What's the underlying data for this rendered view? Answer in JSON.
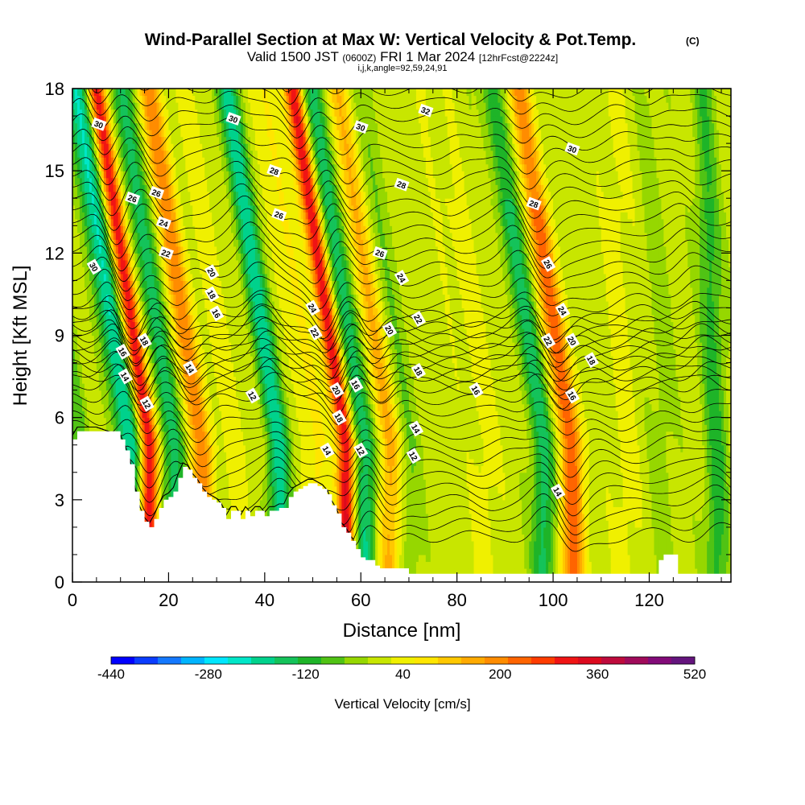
{
  "title": {
    "main": "Wind-Parallel Section at Max W: Vertical Velocity & Pot.Temp.",
    "main_suffix": "(C)",
    "line2_a": "Valid 1500 JST",
    "line2_b": "(0600Z)",
    "line2_c": "FRI 1 Mar 2024",
    "line2_d": "[12hrFcst@2224z]",
    "line3": "i,j,k,angle=92,59,24,91"
  },
  "chart_data": {
    "type": "heatmap",
    "title": "Wind-Parallel Section at Max W: Vertical Velocity & Pot.Temp.",
    "xlabel": "Distance [nm]",
    "ylabel": "Height [Kft MSL]",
    "xlim": [
      0,
      137
    ],
    "ylim": [
      0,
      18
    ],
    "x_ticks": [
      0,
      20,
      40,
      60,
      80,
      100,
      120
    ],
    "y_ticks": [
      0,
      3,
      6,
      9,
      12,
      15,
      18
    ],
    "x_tick_labels": [
      "0",
      "20",
      "40",
      "60",
      "80",
      "100",
      "120"
    ],
    "y_tick_labels": [
      "0",
      "3",
      "6",
      "9",
      "12",
      "15",
      "18"
    ],
    "grid": false,
    "colorbar": {
      "label": "Vertical Velocity [cm/s]",
      "min": -440,
      "max": 520,
      "step": 40,
      "tick_labels": [
        "-440",
        "-280",
        "-120",
        "40",
        "200",
        "360",
        "520"
      ],
      "colors": [
        "#0000ff",
        "#0a3cff",
        "#1478ff",
        "#00b4ff",
        "#00e6ff",
        "#00e6c8",
        "#00d28c",
        "#14c35a",
        "#1eb428",
        "#50c314",
        "#96d700",
        "#c8e600",
        "#f0f000",
        "#ffe600",
        "#ffc800",
        "#ffaa00",
        "#ff8c00",
        "#ff6400",
        "#ff3c00",
        "#f01414",
        "#dc0a1e",
        "#be0a3c",
        "#a00a5a",
        "#820a78",
        "#64147d"
      ]
    },
    "velocity_bands_cm_s": [
      {
        "x_center": 2,
        "peak": -80
      },
      {
        "x_center": 12,
        "peak": -240
      },
      {
        "x_center": 16,
        "peak": 360
      },
      {
        "x_center": 21,
        "peak": -160
      },
      {
        "x_center": 27,
        "peak": 200
      },
      {
        "x_center": 35,
        "peak": 40
      },
      {
        "x_center": 43,
        "peak": -200
      },
      {
        "x_center": 51,
        "peak": 80
      },
      {
        "x_center": 57,
        "peak": 360
      },
      {
        "x_center": 61,
        "peak": -180
      },
      {
        "x_center": 66,
        "peak": 160
      },
      {
        "x_center": 70,
        "peak": -60
      },
      {
        "x_center": 86,
        "peak": 40
      },
      {
        "x_center": 98,
        "peak": -160
      },
      {
        "x_center": 104,
        "peak": 240
      },
      {
        "x_center": 115,
        "peak": 40
      },
      {
        "x_center": 123,
        "peak": -40
      },
      {
        "x_center": 134,
        "peak": -120
      }
    ],
    "terrain_kft": [
      [
        0,
        5.2
      ],
      [
        1,
        5.5
      ],
      [
        5,
        5.5
      ],
      [
        10,
        5.2
      ],
      [
        11,
        4.8
      ],
      [
        12,
        4.3
      ],
      [
        13,
        3.3
      ],
      [
        14,
        2.6
      ],
      [
        15,
        2.2
      ],
      [
        16,
        2.0
      ],
      [
        17,
        2.3
      ],
      [
        18,
        2.7
      ],
      [
        19,
        3.0
      ],
      [
        20,
        3.1
      ],
      [
        21,
        3.3
      ],
      [
        22,
        3.8
      ],
      [
        23,
        4.2
      ],
      [
        24,
        4.1
      ],
      [
        25,
        3.8
      ],
      [
        26,
        3.6
      ],
      [
        27,
        3.3
      ],
      [
        28,
        3.1
      ],
      [
        29,
        3.0
      ],
      [
        30,
        2.9
      ],
      [
        31,
        2.7
      ],
      [
        32,
        2.3
      ],
      [
        33,
        2.6
      ],
      [
        34,
        2.6
      ],
      [
        35,
        2.3
      ],
      [
        36,
        2.6
      ],
      [
        37,
        2.4
      ],
      [
        38,
        2.6
      ],
      [
        39,
        2.6
      ],
      [
        40,
        2.4
      ],
      [
        41,
        2.6
      ],
      [
        42,
        2.6
      ],
      [
        43,
        2.7
      ],
      [
        44,
        2.7
      ],
      [
        45,
        3.1
      ],
      [
        46,
        3.3
      ],
      [
        47,
        3.4
      ],
      [
        48,
        3.5
      ],
      [
        49,
        3.6
      ],
      [
        50,
        3.6
      ],
      [
        51,
        3.5
      ],
      [
        52,
        3.4
      ],
      [
        53,
        3.2
      ],
      [
        54,
        2.8
      ],
      [
        55,
        2.5
      ],
      [
        56,
        2.0
      ],
      [
        57,
        1.8
      ],
      [
        58,
        1.5
      ],
      [
        59,
        1.2
      ],
      [
        60,
        0.9
      ],
      [
        61,
        0.8
      ],
      [
        62,
        0.8
      ],
      [
        63,
        0.6
      ],
      [
        64,
        0.5
      ],
      [
        70,
        0.3
      ],
      [
        100,
        0.3
      ],
      [
        121,
        0.3
      ],
      [
        122,
        0.8
      ],
      [
        123,
        1.0
      ],
      [
        125,
        1.0
      ],
      [
        126,
        0.3
      ],
      [
        137,
        0.3
      ]
    ],
    "theta_levels_C": [
      12,
      14,
      16,
      18,
      20,
      22,
      24,
      26,
      28,
      30,
      32
    ],
    "contour_labels": [
      {
        "x": 5.5,
        "y": 16.7,
        "text": "30"
      },
      {
        "x": 33.5,
        "y": 16.9,
        "text": "30"
      },
      {
        "x": 60,
        "y": 16.6,
        "text": "30"
      },
      {
        "x": 73.5,
        "y": 17.2,
        "text": "32"
      },
      {
        "x": 104,
        "y": 15.8,
        "text": "30"
      },
      {
        "x": 4.5,
        "y": 11.5,
        "text": "30"
      },
      {
        "x": 42,
        "y": 15.0,
        "text": "28"
      },
      {
        "x": 68.5,
        "y": 14.5,
        "text": "28"
      },
      {
        "x": 96,
        "y": 13.8,
        "text": "28"
      },
      {
        "x": 12.5,
        "y": 14.0,
        "text": "26"
      },
      {
        "x": 17.5,
        "y": 14.2,
        "text": "26"
      },
      {
        "x": 43,
        "y": 13.4,
        "text": "26"
      },
      {
        "x": 64,
        "y": 12.0,
        "text": "26"
      },
      {
        "x": 99,
        "y": 11.6,
        "text": "26"
      },
      {
        "x": 19,
        "y": 13.1,
        "text": "24"
      },
      {
        "x": 50,
        "y": 10.0,
        "text": "24"
      },
      {
        "x": 68.5,
        "y": 11.1,
        "text": "24"
      },
      {
        "x": 102,
        "y": 9.9,
        "text": "24"
      },
      {
        "x": 19.5,
        "y": 12.0,
        "text": "22"
      },
      {
        "x": 50.5,
        "y": 9.1,
        "text": "22"
      },
      {
        "x": 72,
        "y": 9.6,
        "text": "22"
      },
      {
        "x": 99,
        "y": 8.8,
        "text": "22"
      },
      {
        "x": 29,
        "y": 11.3,
        "text": "20"
      },
      {
        "x": 66,
        "y": 9.2,
        "text": "20"
      },
      {
        "x": 55,
        "y": 7.0,
        "text": "20"
      },
      {
        "x": 104,
        "y": 8.8,
        "text": "20"
      },
      {
        "x": 29,
        "y": 10.5,
        "text": "18"
      },
      {
        "x": 15,
        "y": 8.8,
        "text": "18"
      },
      {
        "x": 72,
        "y": 7.7,
        "text": "18"
      },
      {
        "x": 55.5,
        "y": 6.0,
        "text": "18"
      },
      {
        "x": 108,
        "y": 8.1,
        "text": "18"
      },
      {
        "x": 30,
        "y": 9.8,
        "text": "16"
      },
      {
        "x": 10.5,
        "y": 8.4,
        "text": "16"
      },
      {
        "x": 59,
        "y": 7.2,
        "text": "16"
      },
      {
        "x": 84,
        "y": 7.0,
        "text": "16"
      },
      {
        "x": 104,
        "y": 6.8,
        "text": "16"
      },
      {
        "x": 24.5,
        "y": 7.8,
        "text": "14"
      },
      {
        "x": 11,
        "y": 7.5,
        "text": "14"
      },
      {
        "x": 53,
        "y": 4.8,
        "text": "14"
      },
      {
        "x": 71.5,
        "y": 5.6,
        "text": "14"
      },
      {
        "x": 101,
        "y": 3.3,
        "text": "14"
      },
      {
        "x": 15.5,
        "y": 6.5,
        "text": "12"
      },
      {
        "x": 37.5,
        "y": 6.8,
        "text": "12"
      },
      {
        "x": 60,
        "y": 4.8,
        "text": "12"
      },
      {
        "x": 71,
        "y": 4.6,
        "text": "12"
      }
    ]
  }
}
